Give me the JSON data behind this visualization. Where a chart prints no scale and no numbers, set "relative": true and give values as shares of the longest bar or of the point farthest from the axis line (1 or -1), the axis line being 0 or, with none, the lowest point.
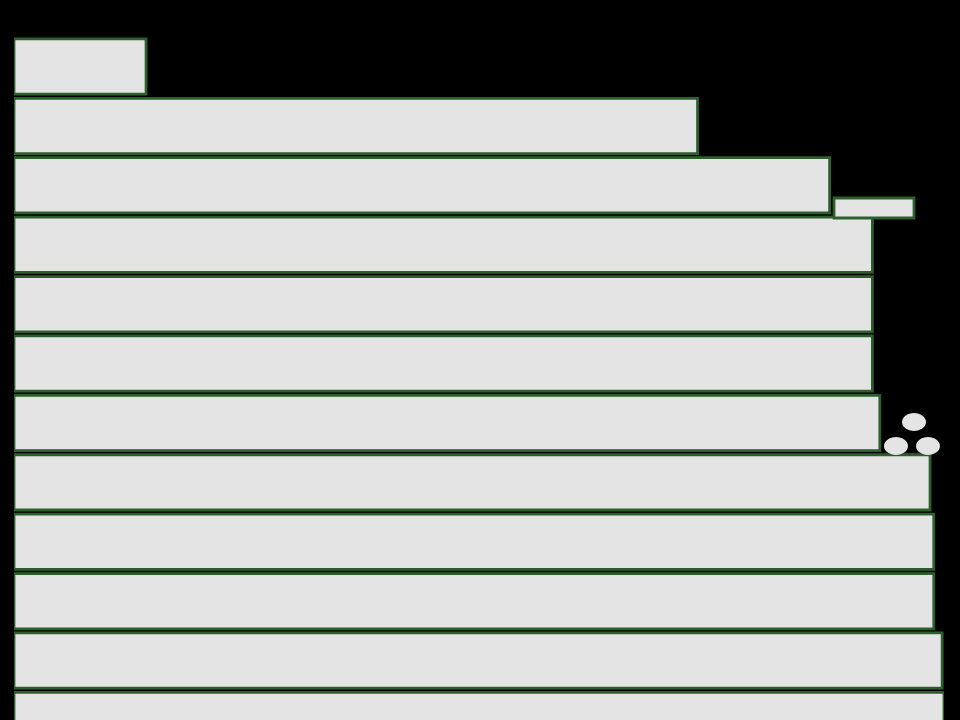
{
  "chart_data": {
    "type": "bar",
    "orientation": "horizontal",
    "relative": true,
    "categories": [
      null,
      null,
      null,
      null,
      null,
      null,
      null,
      null,
      null,
      null,
      null,
      null
    ],
    "values": [
      0.142,
      0.735,
      0.877,
      0.923,
      0.923,
      0.923,
      0.931,
      0.985,
      0.989,
      0.989,
      0.998,
      1
    ],
    "color": "#e4e4e4",
    "grid": false,
    "legend": false
  }
}
